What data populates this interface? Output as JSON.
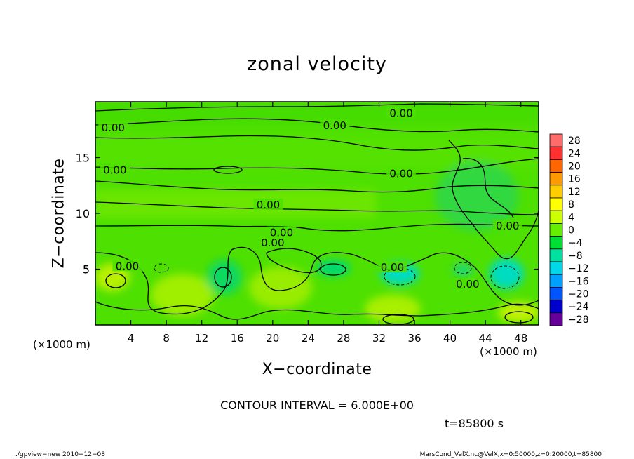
{
  "chart_data": {
    "type": "heatmap",
    "title": "zonal velocity",
    "xlabel": "X−coordinate",
    "ylabel": "Z−coordinate",
    "x_unit": "(×1000 m)",
    "y_unit": "(×1000 m)",
    "xlim": [
      0,
      50
    ],
    "ylim": [
      0,
      20
    ],
    "xticks": [
      "4",
      "8",
      "12",
      "16",
      "20",
      "24",
      "28",
      "32",
      "36",
      "40",
      "44",
      "48"
    ],
    "xtick_values": [
      4,
      8,
      12,
      16,
      20,
      24,
      28,
      32,
      36,
      40,
      44,
      48
    ],
    "yticks": [
      "5",
      "10",
      "15"
    ],
    "ytick_values": [
      5,
      10,
      15
    ],
    "colorbar": {
      "levels": [
        "28",
        "24",
        "20",
        "16",
        "12",
        "8",
        "4",
        "0",
        "−4",
        "−8",
        "−12",
        "−16",
        "−20",
        "−24",
        "−28"
      ],
      "colors": [
        "#ff6b6b",
        "#ff3030",
        "#ff6600",
        "#ff9900",
        "#ffcc00",
        "#ffff00",
        "#ccff00",
        "#66ee00",
        "#00dd33",
        "#00e0a0",
        "#00d8e8",
        "#00a0ff",
        "#0055ff",
        "#0000cc",
        "#660099"
      ]
    },
    "contour_labels": [
      {
        "text": "0.00",
        "x": 34.5,
        "y": 18.9
      },
      {
        "text": "0.00",
        "x": 27,
        "y": 17.8
      },
      {
        "text": "0.00",
        "x": 2,
        "y": 17.6
      },
      {
        "text": "0.00",
        "x": 2.2,
        "y": 13.8
      },
      {
        "text": "0.00",
        "x": 34.5,
        "y": 13.5
      },
      {
        "text": "0.00",
        "x": 19.5,
        "y": 10.7
      },
      {
        "text": "0.00",
        "x": 21,
        "y": 8.2
      },
      {
        "text": "0.00",
        "x": 20,
        "y": 7.3
      },
      {
        "text": "0.00",
        "x": 46.5,
        "y": 8.8
      },
      {
        "text": "0.00",
        "x": 3.6,
        "y": 5.2
      },
      {
        "text": "0.00",
        "x": 33.5,
        "y": 5.1
      },
      {
        "text": "0.00",
        "x": 42,
        "y": 3.6
      }
    ]
  },
  "annotations": {
    "contour_interval": "CONTOUR INTERVAL = 6.000E+00",
    "time": "t=85800 s",
    "footer_left": "./gpview−new  2010−12−08",
    "footer_right": "MarsCond_VelX.nc@VelX,x=0:50000,z=0:20000,t=85800"
  }
}
